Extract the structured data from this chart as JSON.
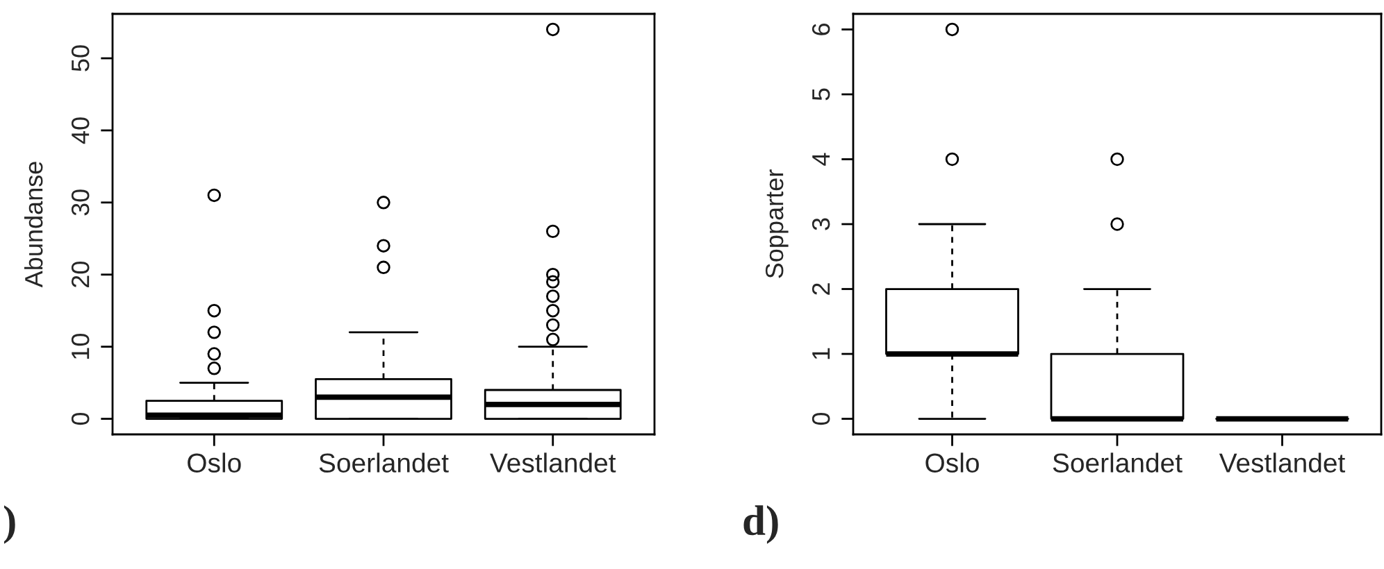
{
  "chart_data": [
    {
      "type": "box",
      "ylabel": "Abundanse",
      "categories": [
        "Oslo",
        "Soerlandet",
        "Vestlandet"
      ],
      "ylim": [
        -2.16,
        56.16
      ],
      "yticks": [
        0,
        10,
        20,
        30,
        40,
        50
      ],
      "annotations": [
        ")"
      ],
      "boxes": [
        {
          "low": 0,
          "q1": 0,
          "median": 0.5,
          "q3": 2.5,
          "high": 5,
          "outliers": [
            7,
            9,
            12,
            15,
            31
          ]
        },
        {
          "low": 0,
          "q1": 0,
          "median": 3,
          "q3": 5.5,
          "high": 12,
          "outliers": [
            21,
            24,
            30
          ]
        },
        {
          "low": 0,
          "q1": 0,
          "median": 2,
          "q3": 4,
          "high": 10,
          "outliers": [
            11,
            13,
            15,
            17,
            19,
            20,
            26,
            54
          ]
        }
      ]
    },
    {
      "type": "box",
      "ylabel": "Sopparter",
      "categories": [
        "Oslo",
        "Soerlandet",
        "Vestlandet"
      ],
      "ylim": [
        -0.24,
        6.24
      ],
      "yticks": [
        0,
        1,
        2,
        3,
        4,
        5,
        6
      ],
      "annotations": [
        "d)"
      ],
      "boxes": [
        {
          "low": 0,
          "q1": 1,
          "median": 1,
          "q3": 2,
          "high": 3,
          "outliers": [
            4,
            6
          ]
        },
        {
          "low": 0,
          "q1": 0,
          "median": 0,
          "q3": 1,
          "high": 2,
          "outliers": [
            3,
            4
          ]
        },
        {
          "low": 0,
          "q1": 0,
          "median": 0,
          "q3": 0,
          "high": 0
        }
      ]
    }
  ]
}
